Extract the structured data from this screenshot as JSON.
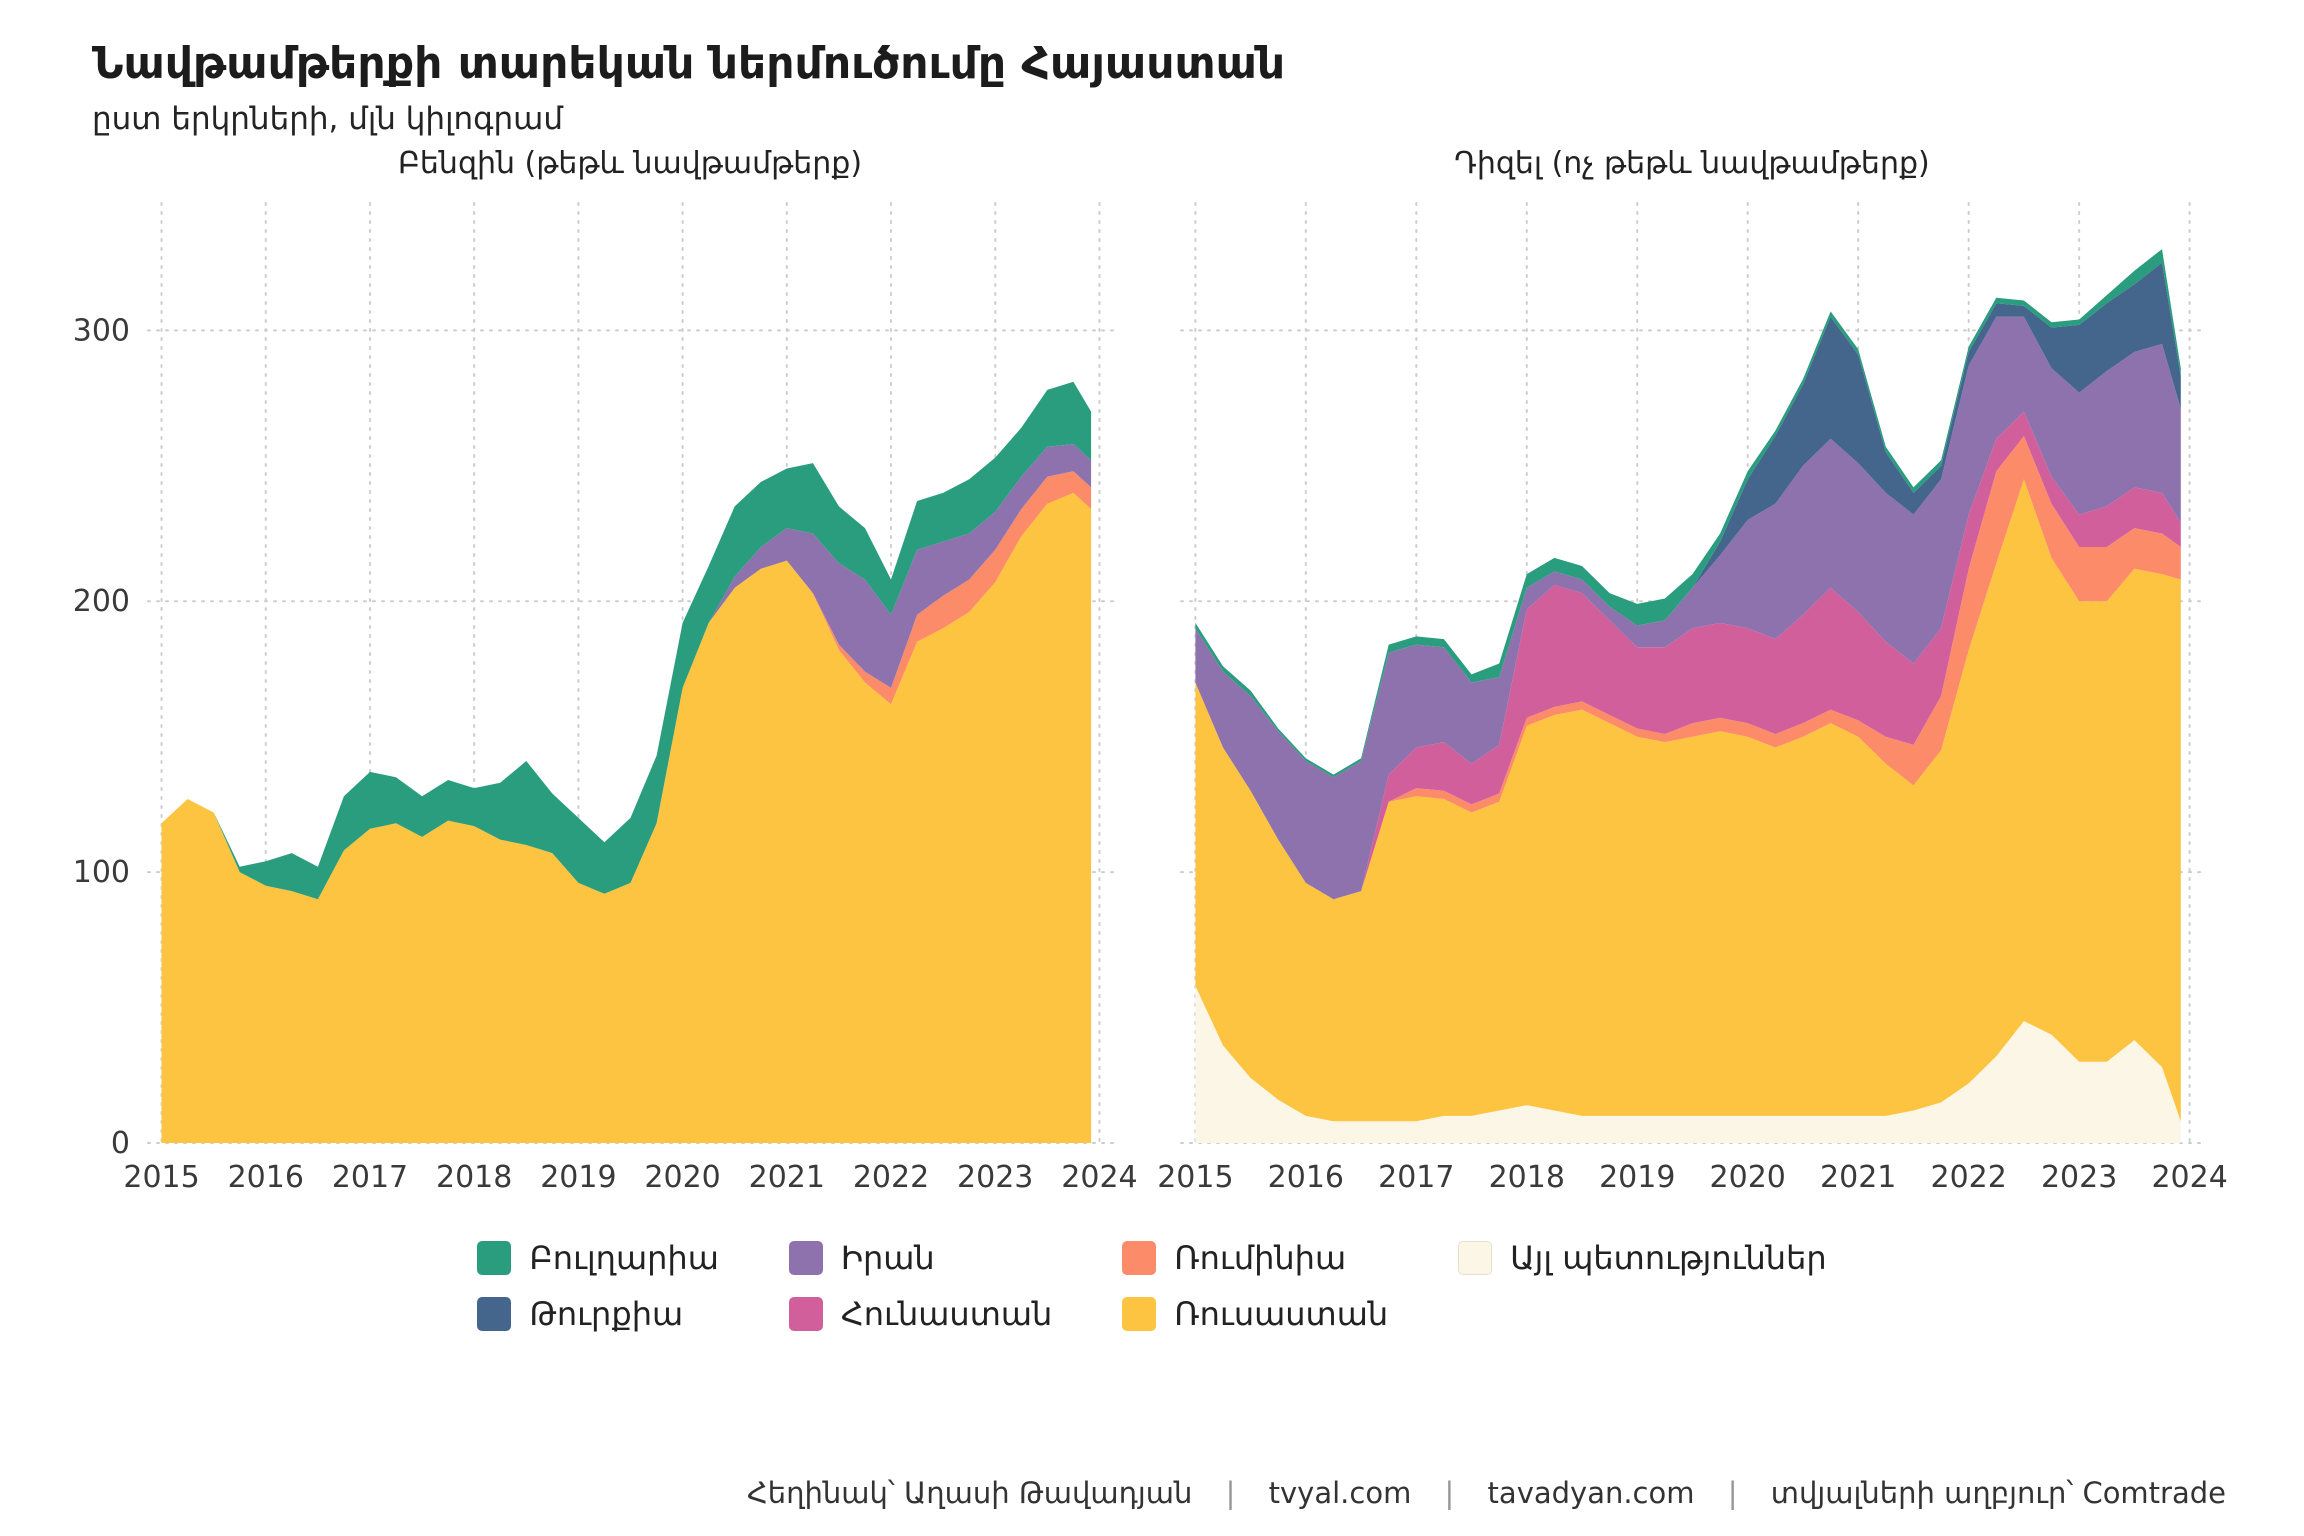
{
  "header": {
    "title": "Նավթամթերքի տարեկան ներմուծումը Հայաստան",
    "subtitle": "ըստ երկրների, մլն կիլոգրամ"
  },
  "colors": {
    "bulgaria": "#2a9d7e",
    "turkey": "#44658c",
    "iran": "#8d72ae",
    "greece": "#d05f9b",
    "romania": "#fb8b69",
    "russia": "#fcc440",
    "other": "#fbf6e6"
  },
  "legend": {
    "items": [
      {
        "label": "Բուլղարիա",
        "key": "bulgaria"
      },
      {
        "label": "Իրան",
        "key": "iran"
      },
      {
        "label": "Ռումինիա",
        "key": "romania"
      },
      {
        "label": "Այլ պետություններ",
        "key": "other"
      },
      {
        "label": "Թուրքիա",
        "key": "turkey"
      },
      {
        "label": "Հունաստան",
        "key": "greece"
      },
      {
        "label": "Ռուսաստան",
        "key": "russia"
      }
    ]
  },
  "footer": {
    "author": "Հեղինակ՝ Աղասի Թավադյան",
    "site1": "tvyal.com",
    "site2": "tavadyan.com",
    "source": "տվյալների աղբյուր՝ Comtrade",
    "separator": "|"
  },
  "chart_data": [
    {
      "type": "stacked-area",
      "title": "Բենզին (թեթև նավթամթերք)",
      "xlabel": "",
      "ylabel": "մլն կիլոգրամ",
      "show_y_axis": true,
      "xlim": [
        2014.87,
        2024.13
      ],
      "ylim": [
        0,
        347
      ],
      "x_ticks": [
        2015,
        2016,
        2017,
        2018,
        2019,
        2020,
        2021,
        2022,
        2023,
        2024
      ],
      "y_ticks": [
        0,
        100,
        200,
        300
      ],
      "x": [
        2015,
        2015.25,
        2015.5,
        2015.75,
        2016,
        2016.25,
        2016.5,
        2016.75,
        2017,
        2017.25,
        2017.5,
        2017.75,
        2018,
        2018.25,
        2018.5,
        2018.75,
        2019,
        2019.25,
        2019.5,
        2019.75,
        2020,
        2020.25,
        2020.5,
        2020.75,
        2021,
        2021.25,
        2021.5,
        2021.75,
        2022,
        2022.25,
        2022.5,
        2022.75,
        2023,
        2023.25,
        2023.5,
        2023.75,
        2023.92
      ],
      "series": [
        {
          "name": "Ռուսաստան",
          "key": "russia",
          "values": [
            118,
            127,
            122,
            100,
            95,
            93,
            90,
            108,
            116,
            118,
            113,
            119,
            117,
            112,
            110,
            107,
            96,
            92,
            96,
            118,
            168,
            192,
            205,
            212,
            215,
            203,
            182,
            170,
            162,
            185,
            190,
            196,
            207,
            224,
            236,
            240,
            234
          ]
        },
        {
          "name": "Ռումինիա",
          "key": "romania",
          "values": [
            0,
            0,
            0,
            0,
            0,
            0,
            0,
            0,
            0,
            0,
            0,
            0,
            0,
            0,
            0,
            0,
            0,
            0,
            0,
            0,
            0,
            0,
            0,
            0,
            0,
            0,
            2,
            4,
            6,
            10,
            12,
            12,
            12,
            10,
            10,
            8,
            8
          ]
        },
        {
          "name": "Իրան",
          "key": "iran",
          "values": [
            0,
            0,
            0,
            0,
            0,
            0,
            0,
            0,
            0,
            0,
            0,
            0,
            0,
            0,
            0,
            0,
            0,
            0,
            0,
            0,
            0,
            0,
            4,
            8,
            12,
            22,
            30,
            34,
            27,
            24,
            20,
            17,
            14,
            12,
            11,
            10,
            10
          ]
        },
        {
          "name": "Բուլղարիա",
          "key": "bulgaria",
          "values": [
            0,
            0,
            0,
            2,
            9,
            14,
            12,
            20,
            21,
            17,
            15,
            15,
            14,
            21,
            31,
            22,
            24,
            19,
            24,
            25,
            24,
            21,
            26,
            24,
            22,
            26,
            21,
            19,
            13,
            18,
            18,
            20,
            20,
            18,
            21,
            23,
            18
          ]
        }
      ]
    },
    {
      "type": "stacked-area",
      "title": "Դիզել (ոչ թեթև նավթամթերք)",
      "xlabel": "",
      "ylabel": "մլն կիլոգրամ",
      "show_y_axis": false,
      "xlim": [
        2014.87,
        2024.13
      ],
      "ylim": [
        0,
        347
      ],
      "x_ticks": [
        2015,
        2016,
        2017,
        2018,
        2019,
        2020,
        2021,
        2022,
        2023,
        2024
      ],
      "y_ticks": [
        0,
        100,
        200,
        300
      ],
      "x": [
        2015,
        2015.25,
        2015.5,
        2015.75,
        2016,
        2016.25,
        2016.5,
        2016.75,
        2017,
        2017.25,
        2017.5,
        2017.75,
        2018,
        2018.25,
        2018.5,
        2018.75,
        2019,
        2019.25,
        2019.5,
        2019.75,
        2020,
        2020.25,
        2020.5,
        2020.75,
        2021,
        2021.25,
        2021.5,
        2021.75,
        2022,
        2022.25,
        2022.5,
        2022.75,
        2023,
        2023.25,
        2023.5,
        2023.75,
        2023.92
      ],
      "series": [
        {
          "name": "Այլ պետություններ",
          "key": "other",
          "values": [
            58,
            36,
            24,
            16,
            10,
            8,
            8,
            8,
            8,
            10,
            10,
            12,
            14,
            12,
            10,
            10,
            10,
            10,
            10,
            10,
            10,
            10,
            10,
            10,
            10,
            10,
            12,
            15,
            22,
            32,
            45,
            40,
            30,
            30,
            38,
            28,
            8
          ]
        },
        {
          "name": "Ռուսաստան",
          "key": "russia",
          "values": [
            112,
            110,
            106,
            96,
            86,
            82,
            85,
            118,
            120,
            117,
            112,
            114,
            140,
            146,
            150,
            145,
            140,
            138,
            140,
            142,
            140,
            136,
            140,
            145,
            140,
            130,
            120,
            130,
            160,
            182,
            200,
            176,
            170,
            170,
            174,
            182,
            200
          ]
        },
        {
          "name": "Ռումինիա",
          "key": "romania",
          "values": [
            0,
            0,
            0,
            0,
            0,
            0,
            0,
            0,
            3,
            3,
            3,
            3,
            3,
            3,
            3,
            3,
            3,
            3,
            5,
            5,
            5,
            5,
            5,
            5,
            6,
            10,
            15,
            20,
            30,
            34,
            16,
            20,
            20,
            20,
            15,
            15,
            12
          ]
        },
        {
          "name": "Հունաստան",
          "key": "greece",
          "values": [
            0,
            0,
            0,
            0,
            0,
            0,
            0,
            10,
            15,
            18,
            15,
            18,
            40,
            45,
            40,
            35,
            30,
            32,
            35,
            35,
            35,
            35,
            40,
            45,
            40,
            35,
            30,
            25,
            20,
            12,
            9,
            10,
            12,
            15,
            15,
            15,
            9
          ]
        },
        {
          "name": "Իրան",
          "key": "iran",
          "values": [
            20,
            28,
            35,
            40,
            45,
            45,
            48,
            45,
            38,
            35,
            30,
            25,
            8,
            5,
            5,
            5,
            8,
            10,
            15,
            25,
            40,
            50,
            55,
            55,
            55,
            55,
            55,
            55,
            55,
            45,
            35,
            40,
            45,
            50,
            50,
            55,
            42
          ]
        },
        {
          "name": "Թուրքիա",
          "key": "turkey",
          "values": [
            0,
            0,
            0,
            0,
            0,
            0,
            0,
            0,
            0,
            0,
            0,
            0,
            0,
            0,
            0,
            0,
            0,
            0,
            0,
            5,
            15,
            25,
            30,
            45,
            40,
            15,
            8,
            5,
            5,
            5,
            4,
            15,
            25,
            25,
            25,
            30,
            12
          ]
        },
        {
          "name": "Բուլղարիա",
          "key": "bulgaria",
          "values": [
            2,
            2,
            2,
            1,
            1,
            1,
            1,
            3,
            3,
            3,
            3,
            5,
            5,
            5,
            5,
            5,
            8,
            8,
            5,
            3,
            3,
            2,
            2,
            2,
            2,
            2,
            2,
            2,
            2,
            2,
            2,
            2,
            2,
            3,
            5,
            5,
            3
          ]
        }
      ]
    }
  ]
}
